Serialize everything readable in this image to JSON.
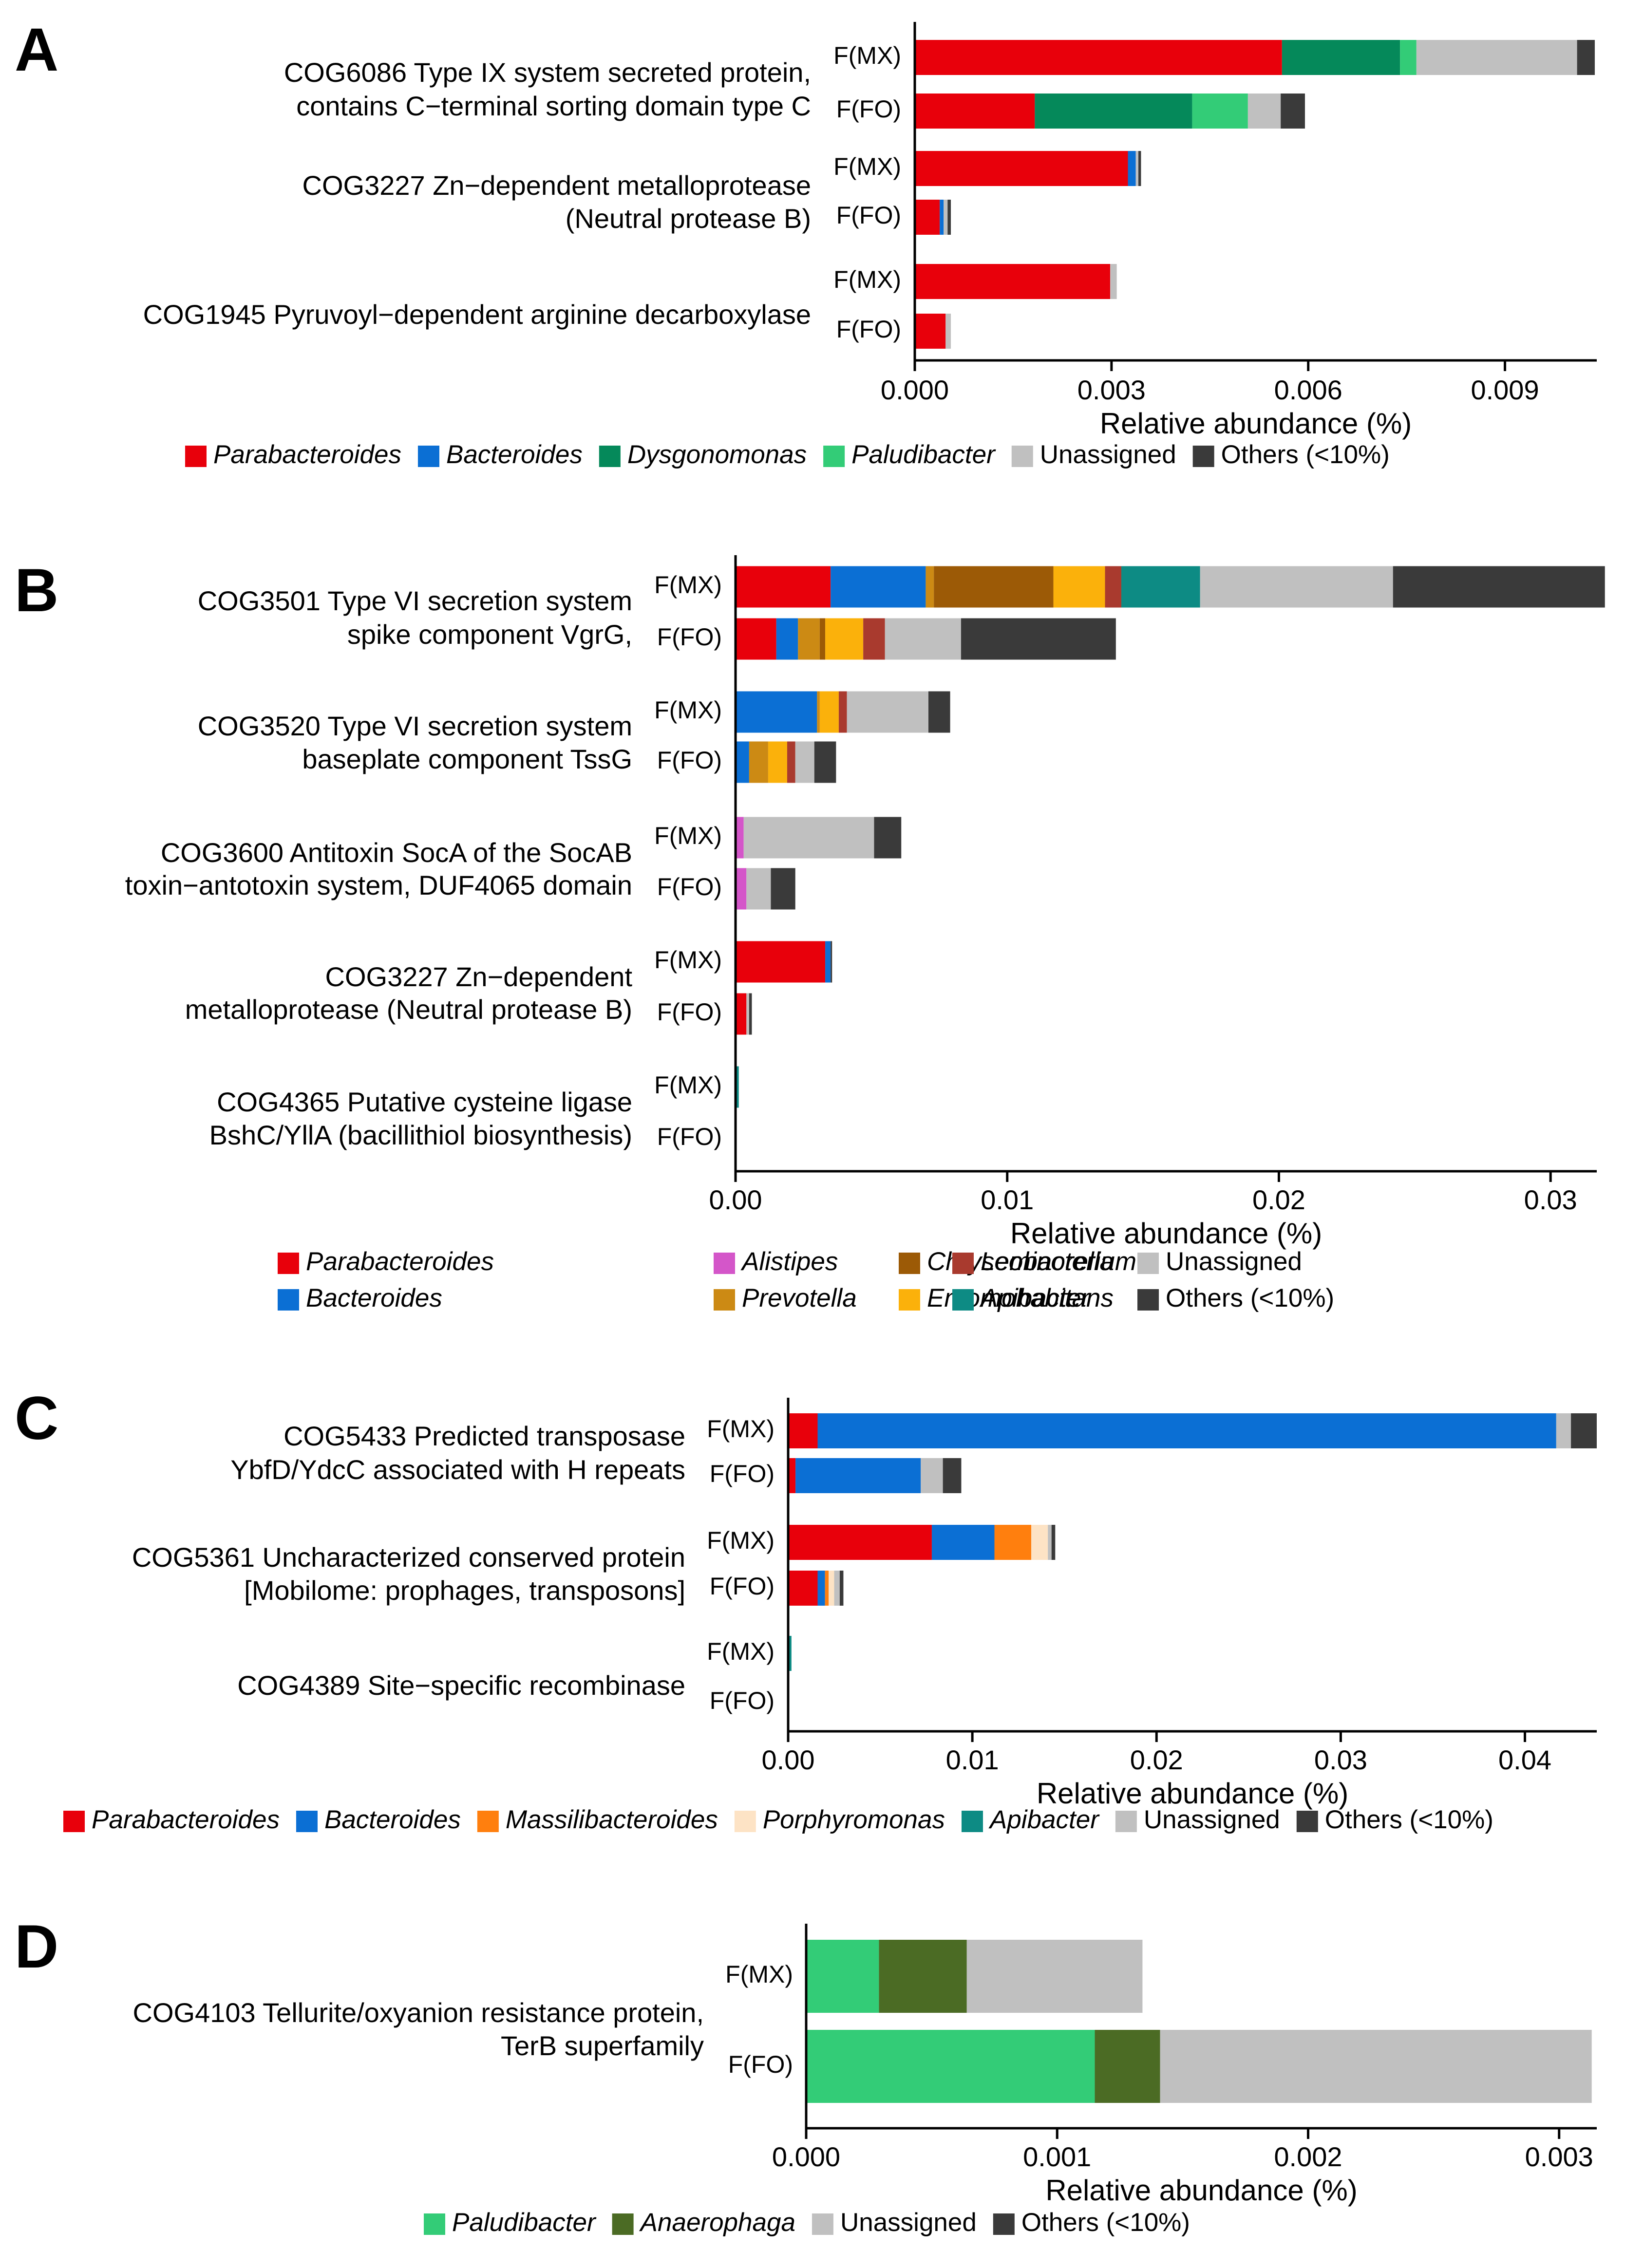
{
  "figure": {
    "xlabel": "Relative abundance (%)"
  },
  "colors": {
    "Parabacteroides": "#e8000b",
    "Bacteroides": "#0b6fd4",
    "Dysgonomonas": "#05895a",
    "Paludibacter": "#33cc77",
    "Alistipes": "#d456c9",
    "Chryseobacterium": "#9c5a06",
    "Leminorella": "#a93a2e",
    "Prevotella": "#cc8a14",
    "Entomohabitans": "#fbb10b",
    "Apibacter": "#0d8b84",
    "Massilibacteroides": "#ff7f0e",
    "Porphyromonas": "#fde3c5",
    "Anaerophaga": "#4b6b24",
    "Unassigned": "#c0c0c0",
    "Others (<10%)": "#3a3a3a"
  },
  "chart_data": [
    {
      "panel": "A",
      "type": "bar",
      "orientation": "horizontal",
      "stacked": true,
      "xlabel": "Relative abundance (%)",
      "xlim": [
        0,
        0.0104
      ],
      "ticks": [
        0,
        0.003,
        0.006,
        0.009
      ],
      "tick_labels": [
        "0.000",
        "0.003",
        "0.006",
        "0.009"
      ],
      "legend": [
        {
          "name": "Parabacteroides",
          "italic": true
        },
        {
          "name": "Bacteroides",
          "italic": true
        },
        {
          "name": "Dysgonomonas",
          "italic": true
        },
        {
          "name": "Paludibacter",
          "italic": true
        },
        {
          "name": "Unassigned",
          "italic": false
        },
        {
          "name": "Others (<10%)",
          "italic": false
        }
      ],
      "groups": [
        {
          "label": [
            "COG6086 Type IX system secreted protein,",
            "contains C−terminal sorting domain type C"
          ],
          "bars": [
            {
              "name": "F(MX)",
              "segments": [
                [
                  "Parabacteroides",
                  0.0056
                ],
                [
                  "Dysgonomonas",
                  0.0018
                ],
                [
                  "Paludibacter",
                  0.00025
                ],
                [
                  "Unassigned",
                  0.00245
                ],
                [
                  "Others (<10%)",
                  0.00027
                ]
              ]
            },
            {
              "name": "F(FO)",
              "segments": [
                [
                  "Parabacteroides",
                  0.00183
                ],
                [
                  "Dysgonomonas",
                  0.0024
                ],
                [
                  "Paludibacter",
                  0.00085
                ],
                [
                  "Unassigned",
                  0.0005
                ],
                [
                  "Others (<10%)",
                  0.00037
                ]
              ]
            }
          ]
        },
        {
          "label": [
            "COG3227 Zn−dependent metalloprotease",
            "(Neutral protease B)"
          ],
          "bars": [
            {
              "name": "F(MX)",
              "segments": [
                [
                  "Parabacteroides",
                  0.00325
                ],
                [
                  "Bacteroides",
                  0.00012
                ],
                [
                  "Unassigned",
                  4e-05
                ],
                [
                  "Others (<10%)",
                  4e-05
                ]
              ]
            },
            {
              "name": "F(FO)",
              "segments": [
                [
                  "Parabacteroides",
                  0.00038
                ],
                [
                  "Bacteroides",
                  6e-05
                ],
                [
                  "Unassigned",
                  6e-05
                ],
                [
                  "Others (<10%)",
                  5e-05
                ]
              ]
            }
          ]
        },
        {
          "label": [
            "COG1945 Pyruvoyl−dependent arginine decarboxylase"
          ],
          "bars": [
            {
              "name": "F(MX)",
              "segments": [
                [
                  "Parabacteroides",
                  0.00298
                ],
                [
                  "Unassigned",
                  0.0001
                ]
              ]
            },
            {
              "name": "F(FO)",
              "segments": [
                [
                  "Parabacteroides",
                  0.00047
                ],
                [
                  "Unassigned",
                  8e-05
                ]
              ]
            }
          ]
        }
      ]
    },
    {
      "panel": "B",
      "type": "bar",
      "orientation": "horizontal",
      "stacked": true,
      "xlabel": "Relative abundance (%)",
      "xlim": [
        0,
        0.0317
      ],
      "ticks": [
        0,
        0.01,
        0.02,
        0.03
      ],
      "tick_labels": [
        "0.00",
        "0.01",
        "0.02",
        "0.03"
      ],
      "legend": [
        {
          "name": "Parabacteroides",
          "italic": true
        },
        {
          "name": "Alistipes",
          "italic": true
        },
        {
          "name": "Chryseobacterium",
          "italic": true
        },
        {
          "name": "Leminorella",
          "italic": true
        },
        {
          "name": "Unassigned",
          "italic": false
        },
        {
          "name": "Bacteroides",
          "italic": true
        },
        {
          "name": "Prevotella",
          "italic": true
        },
        {
          "name": "Entomohabitans",
          "italic": true
        },
        {
          "name": "Apibacter",
          "italic": true
        },
        {
          "name": "Others (<10%)",
          "italic": false
        }
      ],
      "groups": [
        {
          "label": [
            "COG3501 Type VI secretion system",
            "spike component VgrG,"
          ],
          "bars": [
            {
              "name": "F(MX)",
              "segments": [
                [
                  "Parabacteroides",
                  0.0035
                ],
                [
                  "Bacteroides",
                  0.0035
                ],
                [
                  "Prevotella",
                  0.0003
                ],
                [
                  "Chryseobacterium",
                  0.0044
                ],
                [
                  "Entomohabitans",
                  0.0019
                ],
                [
                  "Leminorella",
                  0.0006
                ],
                [
                  "Apibacter",
                  0.0029
                ],
                [
                  "Unassigned",
                  0.0071
                ],
                [
                  "Others (<10%)",
                  0.0078
                ]
              ]
            },
            {
              "name": "F(FO)",
              "segments": [
                [
                  "Parabacteroides",
                  0.0015
                ],
                [
                  "Bacteroides",
                  0.0008
                ],
                [
                  "Prevotella",
                  0.0008
                ],
                [
                  "Chryseobacterium",
                  0.0002
                ],
                [
                  "Entomohabitans",
                  0.0014
                ],
                [
                  "Leminorella",
                  0.0008
                ],
                [
                  "Unassigned",
                  0.0028
                ],
                [
                  "Others (<10%)",
                  0.0057
                ]
              ]
            }
          ]
        },
        {
          "label": [
            "COG3520 Type VI secretion system",
            "baseplate component TssG"
          ],
          "bars": [
            {
              "name": "F(MX)",
              "segments": [
                [
                  "Bacteroides",
                  0.003
                ],
                [
                  "Prevotella",
                  0.0001
                ],
                [
                  "Entomohabitans",
                  0.0007
                ],
                [
                  "Leminorella",
                  0.0003
                ],
                [
                  "Unassigned",
                  0.003
                ],
                [
                  "Others (<10%)",
                  0.0008
                ]
              ]
            },
            {
              "name": "F(FO)",
              "segments": [
                [
                  "Bacteroides",
                  0.0005
                ],
                [
                  "Prevotella",
                  0.0007
                ],
                [
                  "Entomohabitans",
                  0.0007
                ],
                [
                  "Leminorella",
                  0.0003
                ],
                [
                  "Unassigned",
                  0.0007
                ],
                [
                  "Others (<10%)",
                  0.0008
                ]
              ]
            }
          ]
        },
        {
          "label": [
            "COG3600 Antitoxin SocA of the SocAB",
            "toxin−antotoxin system, DUF4065 domain"
          ],
          "bars": [
            {
              "name": "F(MX)",
              "segments": [
                [
                  "Alistipes",
                  0.0003
                ],
                [
                  "Unassigned",
                  0.0048
                ],
                [
                  "Others (<10%)",
                  0.001
                ]
              ]
            },
            {
              "name": "F(FO)",
              "segments": [
                [
                  "Alistipes",
                  0.0004
                ],
                [
                  "Unassigned",
                  0.0009
                ],
                [
                  "Others (<10%)",
                  0.0009
                ]
              ]
            }
          ]
        },
        {
          "label": [
            "COG3227 Zn−dependent",
            "metalloprotease (Neutral protease B)"
          ],
          "bars": [
            {
              "name": "F(MX)",
              "segments": [
                [
                  "Parabacteroides",
                  0.0033
                ],
                [
                  "Bacteroides",
                  0.0002
                ],
                [
                  "Others (<10%)",
                  5e-05
                ]
              ]
            },
            {
              "name": "F(FO)",
              "segments": [
                [
                  "Parabacteroides",
                  0.0004
                ],
                [
                  "Unassigned",
                  0.0001
                ],
                [
                  "Others (<10%)",
                  0.0001
                ]
              ]
            }
          ]
        },
        {
          "label": [
            "COG4365 Putative cysteine ligase",
            "BshC/YllA (bacillithiol biosynthesis)"
          ],
          "bars": [
            {
              "name": "F(MX)",
              "segments": [
                [
                  "Apibacter",
                  0.00012
                ]
              ]
            },
            {
              "name": "F(FO)",
              "segments": []
            }
          ]
        }
      ]
    },
    {
      "panel": "C",
      "type": "bar",
      "orientation": "horizontal",
      "stacked": true,
      "xlabel": "Relative abundance (%)",
      "xlim": [
        0,
        0.0439
      ],
      "ticks": [
        0,
        0.01,
        0.02,
        0.03,
        0.04
      ],
      "tick_labels": [
        "0.00",
        "0.01",
        "0.02",
        "0.03",
        "0.04"
      ],
      "legend": [
        {
          "name": "Parabacteroides",
          "italic": true
        },
        {
          "name": "Bacteroides",
          "italic": true
        },
        {
          "name": "Massilibacteroides",
          "italic": true
        },
        {
          "name": "Porphyromonas",
          "italic": true
        },
        {
          "name": "Apibacter",
          "italic": true
        },
        {
          "name": "Unassigned",
          "italic": false
        },
        {
          "name": "Others (<10%)",
          "italic": false
        }
      ],
      "groups": [
        {
          "label": [
            "COG5433 Predicted transposase",
            "YbfD/YdcC associated with H repeats"
          ],
          "bars": [
            {
              "name": "F(MX)",
              "segments": [
                [
                  "Parabacteroides",
                  0.0016
                ],
                [
                  "Bacteroides",
                  0.0401
                ],
                [
                  "Unassigned",
                  0.0008
                ],
                [
                  "Others (<10%)",
                  0.0014
                ]
              ]
            },
            {
              "name": "F(FO)",
              "segments": [
                [
                  "Parabacteroides",
                  0.0004
                ],
                [
                  "Bacteroides",
                  0.0068
                ],
                [
                  "Unassigned",
                  0.0012
                ],
                [
                  "Others (<10%)",
                  0.001
                ]
              ]
            }
          ]
        },
        {
          "label": [
            "COG5361 Uncharacterized conserved protein",
            "[Mobilome: prophages, transposons]"
          ],
          "bars": [
            {
              "name": "F(MX)",
              "segments": [
                [
                  "Parabacteroides",
                  0.0078
                ],
                [
                  "Bacteroides",
                  0.0034
                ],
                [
                  "Massilibacteroides",
                  0.002
                ],
                [
                  "Porphyromonas",
                  0.0009
                ],
                [
                  "Unassigned",
                  0.0002
                ],
                [
                  "Others (<10%)",
                  0.0002
                ]
              ]
            },
            {
              "name": "F(FO)",
              "segments": [
                [
                  "Parabacteroides",
                  0.0016
                ],
                [
                  "Bacteroides",
                  0.0004
                ],
                [
                  "Massilibacteroides",
                  0.0002
                ],
                [
                  "Porphyromonas",
                  0.0003
                ],
                [
                  "Unassigned",
                  0.0003
                ],
                [
                  "Others (<10%)",
                  0.0002
                ]
              ]
            }
          ]
        },
        {
          "label": [
            "COG4389 Site−specific recombinase"
          ],
          "bars": [
            {
              "name": "F(MX)",
              "segments": [
                [
                  "Apibacter",
                  0.00018
                ]
              ]
            },
            {
              "name": "F(FO)",
              "segments": []
            }
          ]
        }
      ]
    },
    {
      "panel": "D",
      "type": "bar",
      "orientation": "horizontal",
      "stacked": true,
      "xlabel": "Relative abundance (%)",
      "xlim": [
        0,
        0.00315
      ],
      "ticks": [
        0,
        0.001,
        0.002,
        0.003
      ],
      "tick_labels": [
        "0.000",
        "0.001",
        "0.002",
        "0.003"
      ],
      "legend": [
        {
          "name": "Paludibacter",
          "italic": true
        },
        {
          "name": "Anaerophaga",
          "italic": true
        },
        {
          "name": "Unassigned",
          "italic": false
        },
        {
          "name": "Others (<10%)",
          "italic": false
        }
      ],
      "groups": [
        {
          "label": [
            "COG4103 Tellurite/oxyanion resistance protein,",
            "TerB superfamily"
          ],
          "bars": [
            {
              "name": "F(MX)",
              "segments": [
                [
                  "Paludibacter",
                  0.00029
                ],
                [
                  "Anaerophaga",
                  0.00035
                ],
                [
                  "Unassigned",
                  0.0007
                ]
              ]
            },
            {
              "name": "F(FO)",
              "segments": [
                [
                  "Paludibacter",
                  0.00115
                ],
                [
                  "Anaerophaga",
                  0.00026
                ],
                [
                  "Unassigned",
                  0.00172
                ]
              ]
            }
          ]
        }
      ]
    }
  ]
}
